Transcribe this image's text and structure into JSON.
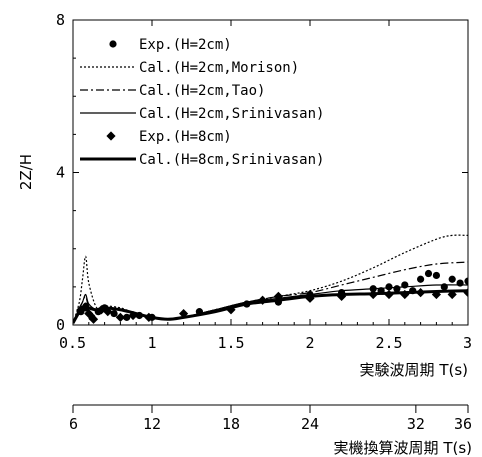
{
  "chart_data": {
    "type": "line",
    "ylabel": "2Z/H",
    "xlabel": "実験波周期 T(s)",
    "xlabel2": "実機換算波周期 T(s)",
    "xlim": [
      0.5,
      3
    ],
    "ylim": [
      0,
      8
    ],
    "x_ticks": [
      0.5,
      1,
      1.5,
      2,
      2.5,
      3
    ],
    "x_tick_labels": [
      "0.5",
      "1",
      "1.5",
      "2",
      "2.5",
      "3"
    ],
    "y_ticks": [
      0,
      4,
      8
    ],
    "y_tick_labels": [
      "0",
      "4",
      "8"
    ],
    "x2_ticks": [
      6,
      12,
      18,
      24,
      32,
      36
    ],
    "x2_tick_positions": [
      0.5,
      1.0,
      1.5,
      2.0,
      2.67,
      3.0
    ],
    "x2_tick_labels": [
      "6",
      "12",
      "18",
      "24",
      "32",
      "36"
    ],
    "legend_position": "top-left",
    "series": [
      {
        "name": "Exp.(H=2cm)",
        "style": "dot",
        "x": [
          0.55,
          0.58,
          0.62,
          0.66,
          0.7,
          0.76,
          0.84,
          0.92,
          1.0,
          1.3,
          1.6,
          1.8,
          2.0,
          2.2,
          2.4,
          2.45,
          2.5,
          2.55,
          2.6,
          2.65,
          2.7,
          2.75,
          2.8,
          2.85,
          2.9,
          2.95,
          3.0
        ],
        "y": [
          0.35,
          0.45,
          0.2,
          0.35,
          0.45,
          0.3,
          0.2,
          0.25,
          0.2,
          0.35,
          0.55,
          0.6,
          0.8,
          0.85,
          0.95,
          0.9,
          1.0,
          0.95,
          1.05,
          0.9,
          1.2,
          1.35,
          1.3,
          1.0,
          1.2,
          1.1,
          1.15
        ]
      },
      {
        "name": "Cal.(H=2cm,Morison)",
        "style": "dotted",
        "x": [
          0.5,
          0.54,
          0.56,
          0.58,
          0.6,
          0.65,
          0.7,
          0.8,
          0.9,
          1.0,
          1.1,
          1.2,
          1.4,
          1.6,
          1.8,
          2.0,
          2.2,
          2.4,
          2.6,
          2.8,
          2.9,
          3.0
        ],
        "y": [
          0.05,
          0.6,
          1.2,
          1.8,
          1.1,
          0.45,
          0.5,
          0.45,
          0.3,
          0.2,
          0.15,
          0.2,
          0.4,
          0.6,
          0.75,
          0.9,
          1.15,
          1.5,
          1.9,
          2.25,
          2.35,
          2.35
        ]
      },
      {
        "name": "Cal.(H=2cm,Tao)",
        "style": "dash-dot",
        "x": [
          0.5,
          0.54,
          0.56,
          0.58,
          0.6,
          0.65,
          0.7,
          0.8,
          0.9,
          1.0,
          1.1,
          1.2,
          1.4,
          1.6,
          1.8,
          2.0,
          2.2,
          2.4,
          2.6,
          2.8,
          3.0
        ],
        "y": [
          0.05,
          0.4,
          0.6,
          0.75,
          0.5,
          0.4,
          0.45,
          0.4,
          0.3,
          0.2,
          0.15,
          0.2,
          0.4,
          0.6,
          0.75,
          0.85,
          1.05,
          1.25,
          1.45,
          1.6,
          1.65
        ]
      },
      {
        "name": "Cal.(H=2cm,Srinivasan)",
        "style": "thin-solid",
        "x": [
          0.5,
          0.54,
          0.56,
          0.58,
          0.6,
          0.65,
          0.7,
          0.8,
          0.9,
          1.0,
          1.1,
          1.2,
          1.4,
          1.6,
          1.8,
          2.0,
          2.2,
          2.4,
          2.6,
          2.8,
          3.0
        ],
        "y": [
          0.05,
          0.45,
          0.6,
          0.8,
          0.55,
          0.4,
          0.45,
          0.4,
          0.3,
          0.2,
          0.15,
          0.2,
          0.4,
          0.6,
          0.7,
          0.8,
          0.9,
          0.95,
          1.0,
          1.05,
          1.05
        ]
      },
      {
        "name": "Exp.(H=8cm)",
        "style": "diamond",
        "x": [
          0.55,
          0.6,
          0.63,
          0.68,
          0.72,
          0.8,
          0.88,
          0.98,
          1.2,
          1.5,
          1.7,
          1.8,
          2.0,
          2.2,
          2.4,
          2.5,
          2.6,
          2.7,
          2.8,
          2.9,
          3.0
        ],
        "y": [
          0.4,
          0.3,
          0.15,
          0.4,
          0.35,
          0.2,
          0.25,
          0.2,
          0.3,
          0.4,
          0.65,
          0.75,
          0.7,
          0.75,
          0.8,
          0.8,
          0.8,
          0.85,
          0.8,
          0.8,
          0.85
        ]
      },
      {
        "name": "Cal.(H=8cm,Srinivasan)",
        "style": "thick-solid",
        "x": [
          0.5,
          0.54,
          0.56,
          0.58,
          0.6,
          0.65,
          0.7,
          0.8,
          0.9,
          1.0,
          1.1,
          1.2,
          1.4,
          1.6,
          1.8,
          2.0,
          2.2,
          2.4,
          2.6,
          2.8,
          3.0
        ],
        "y": [
          0.05,
          0.35,
          0.45,
          0.55,
          0.45,
          0.4,
          0.45,
          0.4,
          0.3,
          0.2,
          0.15,
          0.2,
          0.35,
          0.55,
          0.65,
          0.75,
          0.8,
          0.82,
          0.85,
          0.88,
          0.9
        ]
      }
    ]
  }
}
